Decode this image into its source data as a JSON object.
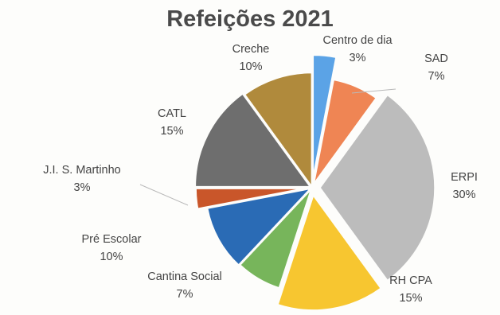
{
  "chart_data": {
    "type": "pie",
    "title": "Refeições 2021",
    "slices": [
      {
        "label": "Centro de dia",
        "value": 3,
        "display": "3%",
        "color": "#5ba3e6"
      },
      {
        "label": "SAD",
        "value": 7,
        "display": "7%",
        "color": "#ef8554"
      },
      {
        "label": "ERPI",
        "value": 30,
        "display": "30%",
        "color": "#bcbcbc"
      },
      {
        "label": "RH CPA",
        "value": 15,
        "display": "15%",
        "color": "#f7c630"
      },
      {
        "label": "Cantina Social",
        "value": 7,
        "display": "7%",
        "color": "#77b55b"
      },
      {
        "label": "Pré Escolar",
        "value": 10,
        "display": "10%",
        "color": "#2a6bb5"
      },
      {
        "label": "J.I. S. Martinho",
        "value": 3,
        "display": "3%",
        "color": "#c9562a"
      },
      {
        "label": "CATL",
        "value": 15,
        "display": "15%",
        "color": "#6e6e6e"
      },
      {
        "label": "Creche",
        "value": 10,
        "display": "10%",
        "color": "#b08a3c"
      }
    ]
  }
}
